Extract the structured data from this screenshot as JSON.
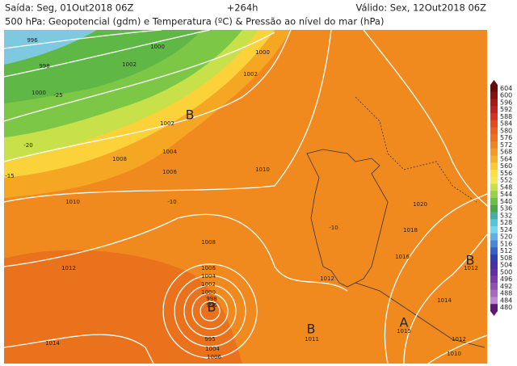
{
  "header": {
    "issued": "Saída: Seg, 01Out2018 06Z",
    "lead": "+264h",
    "valid": "Válido: Sex, 12Out2018 06Z",
    "title": "500 hPa: Geopotencial (gdm) e Temperatura (ºC) & Pressão ao nível do mar (hPa)"
  },
  "map": {
    "isobar_labels": [
      "996",
      "998",
      "1000",
      "1000",
      "1002",
      "1000",
      "1002",
      "1002",
      "1004",
      "1006",
      "1008",
      "1010",
      "1010",
      "1012",
      "1014",
      "1008",
      "1006",
      "1004",
      "1002",
      "1000",
      "998",
      "996",
      "995",
      "1004",
      "1006",
      "1012",
      "1011",
      "1016",
      "1018",
      "1020",
      "1015",
      "1014",
      "1012",
      "1010",
      "1012"
    ],
    "temperature_labels": [
      "-25",
      "-20",
      "-15",
      "-10",
      "-10"
    ],
    "systems": [
      "B",
      "B",
      "B",
      "B",
      "A"
    ]
  },
  "colorbar": {
    "ticks": [
      604,
      600,
      596,
      592,
      588,
      584,
      580,
      576,
      572,
      568,
      564,
      560,
      556,
      552,
      548,
      544,
      540,
      536,
      532,
      528,
      524,
      520,
      516,
      512,
      508,
      504,
      500,
      496,
      492,
      488,
      484,
      480
    ]
  }
}
